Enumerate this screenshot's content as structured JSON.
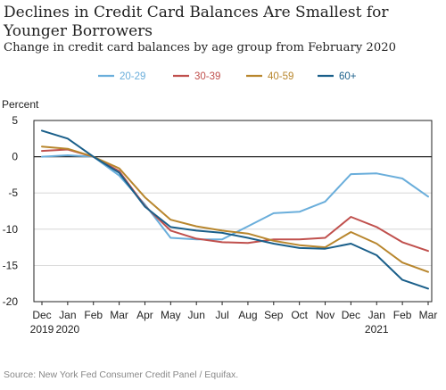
{
  "chart_data": {
    "type": "line",
    "title": "Declines in Credit Card Balances Are Smallest for Younger Borrowers",
    "subtitle": "Change in credit card balances by age group from February 2020",
    "ylabel": "Percent",
    "source": "Source: New York Fed Consumer Credit Panel / Equifax.",
    "x_ticks": [
      {
        "top": "Dec",
        "bottom": "2019"
      },
      {
        "top": "Jan",
        "bottom": "2020"
      },
      {
        "top": "Feb",
        "bottom": ""
      },
      {
        "top": "Mar",
        "bottom": ""
      },
      {
        "top": "Apr",
        "bottom": ""
      },
      {
        "top": "May",
        "bottom": ""
      },
      {
        "top": "Jun",
        "bottom": ""
      },
      {
        "top": "Jul",
        "bottom": ""
      },
      {
        "top": "Aug",
        "bottom": ""
      },
      {
        "top": "Sep",
        "bottom": ""
      },
      {
        "top": "Oct",
        "bottom": ""
      },
      {
        "top": "Nov",
        "bottom": ""
      },
      {
        "top": "Dec",
        "bottom": ""
      },
      {
        "top": "Jan",
        "bottom": "2021"
      },
      {
        "top": "Feb",
        "bottom": ""
      },
      {
        "top": "Mar",
        "bottom": ""
      }
    ],
    "y_ticks": [
      5,
      0,
      -5,
      -10,
      -15,
      -20
    ],
    "ylim": [
      -20,
      5
    ],
    "legend_position": "top-center",
    "series": [
      {
        "name": "20-29",
        "color": "#6aaedb",
        "values": [
          0.0,
          0.2,
          0.0,
          -2.6,
          -6.6,
          -11.2,
          -11.4,
          -11.4,
          -9.6,
          -7.8,
          -7.6,
          -6.2,
          -2.4,
          -2.3,
          -3.0,
          -5.5
        ]
      },
      {
        "name": "30-39",
        "color": "#c0504d",
        "values": [
          0.8,
          1.0,
          0.0,
          -2.0,
          -6.8,
          -10.2,
          -11.3,
          -11.8,
          -11.9,
          -11.4,
          -11.4,
          -11.2,
          -8.3,
          -9.7,
          -11.8,
          -13.0
        ]
      },
      {
        "name": "40-59",
        "color": "#b8862d",
        "values": [
          1.4,
          1.1,
          0.0,
          -1.6,
          -5.6,
          -8.7,
          -9.6,
          -10.2,
          -10.6,
          -11.6,
          -12.2,
          -12.5,
          -10.4,
          -12.0,
          -14.6,
          -15.9
        ]
      },
      {
        "name": "60+",
        "color": "#1a5f8a",
        "values": [
          3.6,
          2.5,
          0.0,
          -2.2,
          -6.9,
          -9.7,
          -10.2,
          -10.5,
          -11.2,
          -12.0,
          -12.6,
          -12.7,
          -12.0,
          -13.6,
          -17.0,
          -18.2
        ]
      }
    ]
  }
}
